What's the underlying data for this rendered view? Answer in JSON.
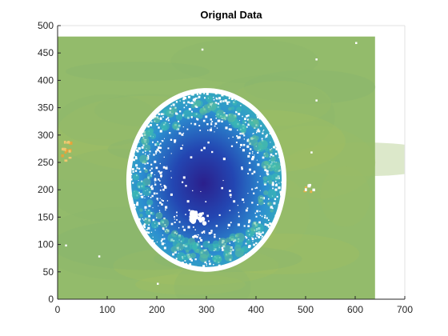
{
  "chart_data": {
    "type": "heatmap",
    "title": "Orignal Data",
    "xlabel": "",
    "ylabel": "",
    "xlim": [
      0,
      700
    ],
    "ylim": [
      0,
      500
    ],
    "x_ticks": [
      0,
      100,
      200,
      300,
      400,
      500,
      600,
      700
    ],
    "y_ticks": [
      0,
      50,
      100,
      150,
      200,
      250,
      300,
      350,
      400,
      450,
      500
    ],
    "grid": false,
    "image_extent": {
      "x": [
        0,
        640
      ],
      "y": [
        0,
        480
      ]
    },
    "background_level_color": "#93BB6B",
    "dish": {
      "center_x": 300,
      "center_y": 218,
      "radius_x": 155,
      "radius_y": 162,
      "edge_color": "#FFFFFF",
      "outer_color": "#38B4B7",
      "mid_color": "#2C8FD0",
      "inner_color": "#2346B2",
      "core_color": "#2B1F8C"
    },
    "colormap": [
      "#352A87",
      "#2B57D4",
      "#1A8CD9",
      "#22B5C2",
      "#69BF8B",
      "#A9BE4C",
      "#E0BA35",
      "#F9FB0E"
    ]
  }
}
